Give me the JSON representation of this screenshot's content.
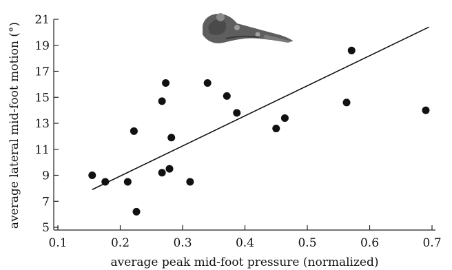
{
  "chart_data": {
    "type": "scatter",
    "xlabel": "average peak mid-foot pressure (normalized)",
    "ylabel": "average lateral mid-foot motion (°)",
    "xlim": [
      0.1,
      0.7
    ],
    "ylim": [
      5,
      21
    ],
    "x_ticks": [
      "0.1",
      "0.2",
      "0.3",
      "0.4",
      "0.5",
      "0.6",
      "0.7"
    ],
    "y_ticks": [
      "5",
      "7",
      "9",
      "11",
      "13",
      "15",
      "17",
      "19",
      "21"
    ],
    "x_tick_values": [
      0.1,
      0.2,
      0.3,
      0.4,
      0.5,
      0.6,
      0.7
    ],
    "y_tick_values": [
      5,
      7,
      9,
      11,
      13,
      15,
      17,
      19,
      21
    ],
    "points": [
      {
        "x": 0.155,
        "y": 9.0
      },
      {
        "x": 0.176,
        "y": 8.5
      },
      {
        "x": 0.212,
        "y": 8.5
      },
      {
        "x": 0.222,
        "y": 12.4
      },
      {
        "x": 0.226,
        "y": 6.2
      },
      {
        "x": 0.267,
        "y": 14.7
      },
      {
        "x": 0.267,
        "y": 9.2
      },
      {
        "x": 0.273,
        "y": 16.1
      },
      {
        "x": 0.279,
        "y": 9.5
      },
      {
        "x": 0.282,
        "y": 11.9
      },
      {
        "x": 0.312,
        "y": 8.5
      },
      {
        "x": 0.34,
        "y": 16.1
      },
      {
        "x": 0.371,
        "y": 15.1
      },
      {
        "x": 0.387,
        "y": 13.8
      },
      {
        "x": 0.45,
        "y": 12.6
      },
      {
        "x": 0.464,
        "y": 13.4
      },
      {
        "x": 0.563,
        "y": 14.6
      },
      {
        "x": 0.571,
        "y": 18.6
      },
      {
        "x": 0.69,
        "y": 14.0
      }
    ],
    "trendline": {
      "x": [
        0.155,
        0.695
      ],
      "y": [
        7.9,
        20.4
      ]
    },
    "grid": false,
    "legend": "none"
  }
}
